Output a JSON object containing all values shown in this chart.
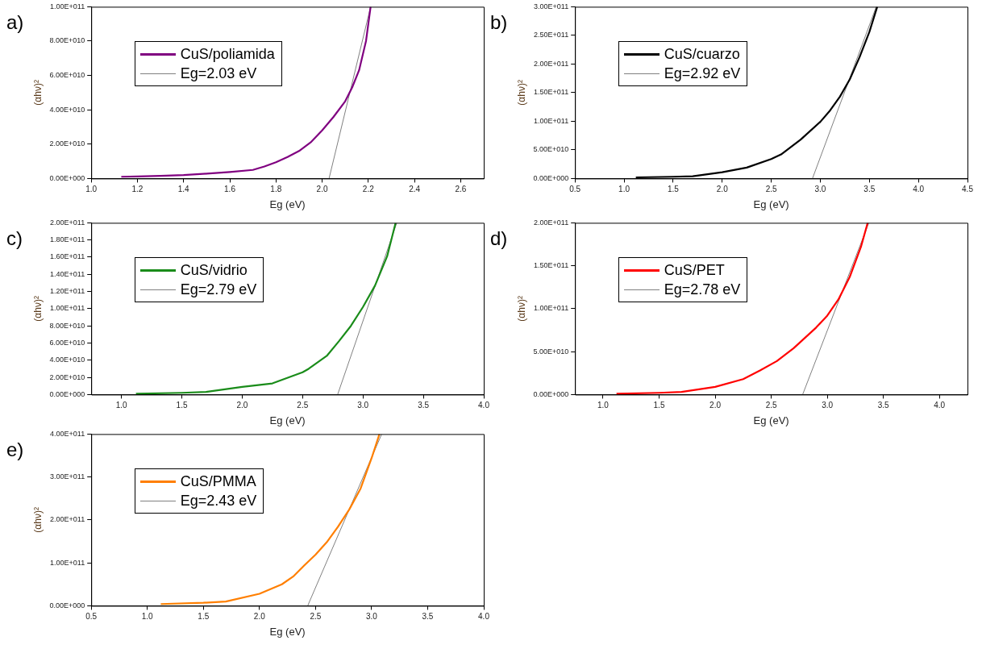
{
  "chart_data": [
    {
      "type": "line",
      "title": "a)",
      "xlabel": "Eg (eV)",
      "ylabel": "(αhν)²",
      "legend": "top left",
      "xlim": [
        1.0,
        2.7
      ],
      "xticks": [
        {
          "value": 1.0,
          "label": "1.0"
        },
        {
          "value": 1.2,
          "label": "1.2"
        },
        {
          "value": 1.4,
          "label": "1.4"
        },
        {
          "value": 1.6,
          "label": "1.6"
        },
        {
          "value": 1.8,
          "label": "1.8"
        },
        {
          "value": 2.0,
          "label": "2.0"
        },
        {
          "value": 2.2,
          "label": "2.2"
        },
        {
          "value": 2.4,
          "label": "2.4"
        },
        {
          "value": 2.6,
          "label": "2.6"
        }
      ],
      "ylim": [
        0,
        100000000000
      ],
      "yticks": [
        {
          "value": 0,
          "label": "0.00E+000"
        },
        {
          "value": 20000000000,
          "label": "2.00E+010"
        },
        {
          "value": 40000000000,
          "label": "4.00E+010"
        },
        {
          "value": 60000000000,
          "label": "6.00E+010"
        },
        {
          "value": 80000000000,
          "label": "8.00E+010"
        },
        {
          "value": 100000000000,
          "label": "1.00E+011"
        }
      ],
      "series": [
        {
          "name": "CuS/poliamida",
          "color": "#800080",
          "x": [
            1.13,
            1.2,
            1.3,
            1.4,
            1.5,
            1.6,
            1.7,
            1.75,
            1.8,
            1.85,
            1.9,
            1.95,
            2.0,
            2.05,
            2.1,
            2.13,
            2.16,
            2.19,
            2.21
          ],
          "values": [
            1000000000,
            1200000000,
            1500000000,
            2000000000,
            2800000000,
            3800000000,
            5000000000,
            7000000000,
            9500000000,
            12500000000,
            16000000000,
            21000000000,
            28000000000,
            36000000000,
            45000000000,
            53000000000,
            63000000000,
            80000000000,
            100000000000
          ]
        },
        {
          "name": "Eg=2.03 eV",
          "color": "#808080",
          "x": [
            2.03,
            2.21
          ],
          "values": [
            0,
            100000000000
          ]
        }
      ]
    },
    {
      "type": "line",
      "title": "b)",
      "xlabel": "Eg (eV)",
      "ylabel": "(αhν)²",
      "legend": "top left",
      "xlim": [
        0.5,
        4.5
      ],
      "xticks": [
        {
          "value": 0.5,
          "label": "0.5"
        },
        {
          "value": 1.0,
          "label": "1.0"
        },
        {
          "value": 1.5,
          "label": "1.5"
        },
        {
          "value": 2.0,
          "label": "2.0"
        },
        {
          "value": 2.5,
          "label": "2.5"
        },
        {
          "value": 3.0,
          "label": "3.0"
        },
        {
          "value": 3.5,
          "label": "3.5"
        },
        {
          "value": 4.0,
          "label": "4.0"
        },
        {
          "value": 4.5,
          "label": "4.5"
        }
      ],
      "ylim": [
        0,
        300000000000
      ],
      "yticks": [
        {
          "value": 0,
          "label": "0.00E+000"
        },
        {
          "value": 50000000000,
          "label": "5.00E+010"
        },
        {
          "value": 100000000000,
          "label": "1.00E+011"
        },
        {
          "value": 150000000000,
          "label": "1.50E+011"
        },
        {
          "value": 200000000000,
          "label": "2.00E+011"
        },
        {
          "value": 250000000000,
          "label": "2.50E+011"
        },
        {
          "value": 300000000000,
          "label": "3.00E+011"
        }
      ],
      "series": [
        {
          "name": "CuS/cuarzo",
          "color": "#000000",
          "x": [
            1.12,
            1.5,
            1.7,
            2.0,
            2.25,
            2.5,
            2.6,
            2.8,
            3.0,
            3.1,
            3.2,
            3.3,
            3.4,
            3.5,
            3.58
          ],
          "values": [
            2000000000,
            3000000000,
            4000000000,
            11000000000,
            19000000000,
            34000000000,
            42000000000,
            68000000000,
            99000000000,
            119000000000,
            143000000000,
            173000000000,
            212000000000,
            256000000000,
            300000000000
          ]
        },
        {
          "name": "Eg=2.92 eV",
          "color": "#808080",
          "x": [
            2.92,
            3.57
          ],
          "values": [
            0,
            300000000000
          ]
        }
      ]
    },
    {
      "type": "line",
      "title": "c)",
      "xlabel": "Eg (eV)",
      "ylabel": "(αhν)²",
      "legend": "top left",
      "xlim": [
        0.75,
        4.0
      ],
      "xticks": [
        {
          "value": 1.0,
          "label": "1.0"
        },
        {
          "value": 1.5,
          "label": "1.5"
        },
        {
          "value": 2.0,
          "label": "2.0"
        },
        {
          "value": 2.5,
          "label": "2.5"
        },
        {
          "value": 3.0,
          "label": "3.0"
        },
        {
          "value": 3.5,
          "label": "3.5"
        },
        {
          "value": 4.0,
          "label": "4.0"
        }
      ],
      "ylim": [
        0,
        200000000000
      ],
      "yticks": [
        {
          "value": 0,
          "label": "0.00E+000"
        },
        {
          "value": 20000000000,
          "label": "2.00E+010"
        },
        {
          "value": 40000000000,
          "label": "4.00E+010"
        },
        {
          "value": 60000000000,
          "label": "6.00E+010"
        },
        {
          "value": 80000000000,
          "label": "8.00E+010"
        },
        {
          "value": 100000000000,
          "label": "1.00E+011"
        },
        {
          "value": 120000000000,
          "label": "1.20E+011"
        },
        {
          "value": 140000000000,
          "label": "1.40E+011"
        },
        {
          "value": 160000000000,
          "label": "1.60E+011"
        },
        {
          "value": 180000000000,
          "label": "1.80E+011"
        },
        {
          "value": 200000000000,
          "label": "2.00E+011"
        }
      ],
      "series": [
        {
          "name": "CuS/vidrio",
          "color": "#1a8c1a",
          "x": [
            1.12,
            1.5,
            1.7,
            2.0,
            2.25,
            2.5,
            2.55,
            2.7,
            2.8,
            2.9,
            3.0,
            3.1,
            3.2,
            3.27
          ],
          "values": [
            1000000000,
            2000000000,
            3000000000,
            9000000000,
            13000000000,
            26000000000,
            30000000000,
            45000000000,
            62000000000,
            80000000000,
            102000000000,
            127000000000,
            161000000000,
            200000000000
          ]
        },
        {
          "name": "Eg=2.79 eV",
          "color": "#808080",
          "x": [
            2.79,
            3.28
          ],
          "values": [
            0,
            200000000000
          ]
        }
      ]
    },
    {
      "type": "line",
      "title": "d)",
      "xlabel": "Eg (eV)",
      "ylabel": "(αhν)²",
      "legend": "top left",
      "xlim": [
        0.75,
        4.25
      ],
      "xticks": [
        {
          "value": 1.0,
          "label": "1.0"
        },
        {
          "value": 1.5,
          "label": "1.5"
        },
        {
          "value": 2.0,
          "label": "2.0"
        },
        {
          "value": 2.5,
          "label": "2.5"
        },
        {
          "value": 3.0,
          "label": "3.0"
        },
        {
          "value": 3.5,
          "label": "3.5"
        },
        {
          "value": 4.0,
          "label": "4.0"
        }
      ],
      "ylim": [
        0,
        200000000000
      ],
      "yticks": [
        {
          "value": 0,
          "label": "0.00E+000"
        },
        {
          "value": 50000000000,
          "label": "5.00E+010"
        },
        {
          "value": 100000000000,
          "label": "1.00E+011"
        },
        {
          "value": 150000000000,
          "label": "1.50E+011"
        },
        {
          "value": 200000000000,
          "label": "2.00E+011"
        }
      ],
      "series": [
        {
          "name": "CuS/PET",
          "color": "#ff0000",
          "x": [
            1.12,
            1.5,
            1.7,
            2.0,
            2.25,
            2.4,
            2.55,
            2.7,
            2.9,
            3.0,
            3.1,
            3.2,
            3.3,
            3.36
          ],
          "values": [
            1000000000,
            2000000000,
            3000000000,
            9000000000,
            18000000000,
            28000000000,
            39000000000,
            54000000000,
            78000000000,
            92000000000,
            111000000000,
            137000000000,
            172000000000,
            200000000000
          ]
        },
        {
          "name": "Eg=2.78 eV",
          "color": "#808080",
          "x": [
            2.78,
            3.37
          ],
          "values": [
            0,
            200000000000
          ]
        }
      ]
    },
    {
      "type": "line",
      "title": "e)",
      "xlabel": "Eg (eV)",
      "ylabel": "(αhν)²",
      "legend": "top left",
      "xlim": [
        0.5,
        4.0
      ],
      "xticks": [
        {
          "value": 0.5,
          "label": "0.5"
        },
        {
          "value": 1.0,
          "label": "1.0"
        },
        {
          "value": 1.5,
          "label": "1.5"
        },
        {
          "value": 2.0,
          "label": "2.0"
        },
        {
          "value": 2.5,
          "label": "2.5"
        },
        {
          "value": 3.0,
          "label": "3.0"
        },
        {
          "value": 3.5,
          "label": "3.5"
        },
        {
          "value": 4.0,
          "label": "4.0"
        }
      ],
      "ylim": [
        0,
        400000000000
      ],
      "yticks": [
        {
          "value": 0,
          "label": "0.00E+000"
        },
        {
          "value": 100000000000,
          "label": "1.00E+011"
        },
        {
          "value": 200000000000,
          "label": "2.00E+011"
        },
        {
          "value": 300000000000,
          "label": "3.00E+011"
        },
        {
          "value": 400000000000,
          "label": "4.00E+011"
        }
      ],
      "series": [
        {
          "name": "CuS/PMMA",
          "color": "#ff7f00",
          "x": [
            1.12,
            1.5,
            1.7,
            2.0,
            2.2,
            2.3,
            2.4,
            2.5,
            2.6,
            2.7,
            2.8,
            2.9,
            3.0,
            3.07
          ],
          "values": [
            4000000000,
            7000000000,
            10000000000,
            28000000000,
            50000000000,
            68000000000,
            94000000000,
            119000000000,
            148000000000,
            184000000000,
            224000000000,
            272000000000,
            344000000000,
            400000000000
          ]
        },
        {
          "name": "Eg=2.43 eV",
          "color": "#808080",
          "x": [
            2.43,
            3.09
          ],
          "values": [
            0,
            400000000000
          ]
        }
      ]
    }
  ]
}
